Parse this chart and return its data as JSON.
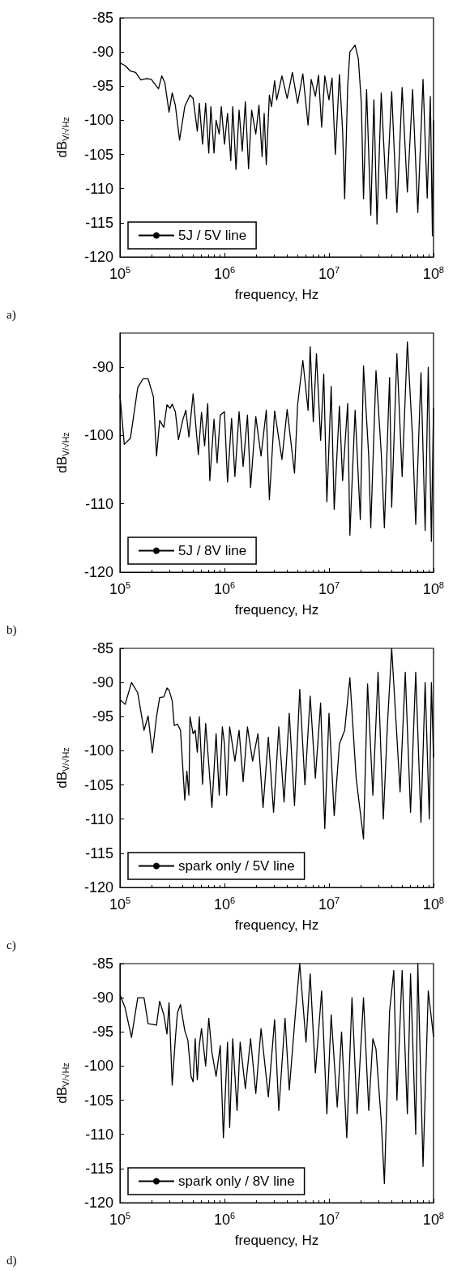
{
  "chart_data": [
    {
      "type": "line",
      "xlabel": "frequency, Hz",
      "ylabel": "dB$_{V/√Hz}$",
      "annotations": [
        "a)"
      ],
      "log": "x",
      "legend": "bottom left",
      "xlim": [
        100000.0,
        100000000.0
      ],
      "xticks": [
        {
          "value": 100000.0,
          "label": "10$^{5}$"
        },
        {
          "value": 1000000.0,
          "label": "10$^{6}$"
        },
        {
          "value": 10000000.0,
          "label": "10$^{7}$"
        },
        {
          "value": 100000000.0,
          "label": "10$^{8}$"
        }
      ],
      "ylim": [
        -120,
        -85
      ],
      "yticks": [
        -120,
        -115,
        -110,
        -105,
        -100,
        -95,
        -90,
        -85
      ],
      "series": [
        {
          "name": "5J / 5V line",
          "color": "#000000",
          "x": [
            100000.0,
            112200.0,
            125900.0,
            141300.0,
            158500.0,
            177800.0,
            199500.0,
            234000.0,
            251200.0,
            269000.0,
            295000.0,
            316200.0,
            339000.0,
            372000.0,
            417000.0,
            468000.0,
            501200.0,
            550000.0,
            575000.0,
            617000.0,
            661000.0,
            707900.0,
            741000.0,
            794300.0,
            832000.0,
            891300.0,
            933000.0,
            1000000.0,
            1070000.0,
            1150000.0,
            1200000.0,
            1290000.0,
            1380000.0,
            1480000.0,
            1585000.0,
            1700000.0,
            1820000.0,
            1995000.0,
            2140000.0,
            2290000.0,
            2400000.0,
            2512000.0,
            2690000.0,
            2818000.0,
            3020000.0,
            3162000.0,
            3548000.0,
            3981000.0,
            4467000.0,
            5012000.0,
            5623000.0,
            6310000.0,
            6760000.0,
            7410000.0,
            7943000.0,
            8510000.0,
            9120000.0,
            10000000.0,
            10700000.0,
            11500000.0,
            12590000.0,
            13500000.0,
            14130000.0,
            15100000.0,
            15850000.0,
            17780000.0,
            19100000.0,
            20400000.0,
            21400000.0,
            22900000.0,
            25120000.0,
            26900000.0,
            28800000.0,
            31620000.0,
            35480000.0,
            39810000.0,
            44670000.0,
            50120000.0,
            56230000.0,
            63100000.0,
            70790000.0,
            79430000.0,
            87100000.0,
            93300000.0,
            97700000.0,
            100000000.0
          ],
          "values": [
            -91.6,
            -92,
            -92.8,
            -93,
            -94.1,
            -93.9,
            -94,
            -95.4,
            -93.5,
            -94.5,
            -98.8,
            -96,
            -97.8,
            -102.9,
            -98,
            -96.3,
            -96.8,
            -101.6,
            -97.5,
            -103.5,
            -97.5,
            -104.8,
            -98,
            -104.8,
            -100,
            -102,
            -98,
            -103.5,
            -99,
            -105.9,
            -98,
            -107.2,
            -98.5,
            -104.5,
            -97.3,
            -107.1,
            -98.5,
            -102,
            -97.8,
            -105.3,
            -99,
            -106.5,
            -96.3,
            -98,
            -94.2,
            -97,
            -93.5,
            -96.8,
            -93,
            -97.5,
            -93.2,
            -100.7,
            -94,
            -96.5,
            -93.4,
            -101,
            -93.5,
            -97,
            -93.8,
            -105,
            -93.3,
            -101.5,
            -111.5,
            -95,
            -90,
            -89,
            -91,
            -97.5,
            -111.5,
            -95.5,
            -113.9,
            -97,
            -115.2,
            -96,
            -111.5,
            -95.8,
            -113.5,
            -95.2,
            -110.5,
            -95.5,
            -113.5,
            -94,
            -111.4,
            -96.5,
            -116.9,
            -100
          ]
        }
      ]
    },
    {
      "type": "line",
      "xlabel": "frequency, Hz",
      "ylabel": "dB$_{V/√Hz}$",
      "annotations": [
        "b)"
      ],
      "log": "x",
      "legend": "bottom left",
      "xlim": [
        100000.0,
        100000000.0
      ],
      "xticks": [
        {
          "value": 100000.0,
          "label": "10$^{5}$"
        },
        {
          "value": 1000000.0,
          "label": "10$^{6}$"
        },
        {
          "value": 10000000.0,
          "label": "10$^{7}$"
        },
        {
          "value": 100000000.0,
          "label": "10$^{8}$"
        }
      ],
      "ylim": [
        -120,
        -85
      ],
      "yticks": [
        -120,
        -110,
        -100,
        -90
      ],
      "series": [
        {
          "name": "5J / 8V line",
          "color": "#000000",
          "x": [
            100000.0,
            110000.0,
            125900.0,
            148000.0,
            166000.0,
            186000.0,
            209000.0,
            223900.0,
            240000.0,
            263000.0,
            281800.0,
            302000.0,
            316200.0,
            339000.0,
            363000.0,
            398100.0,
            427000.0,
            457000.0,
            501200.0,
            562300.0,
            603000.0,
            646000.0,
            692000.0,
            724000.0,
            794300.0,
            851000.0,
            912000.0,
            1000000.0,
            1070000.0,
            1170000.0,
            1259000.0,
            1380000.0,
            1510000.0,
            1660000.0,
            1778000.0,
            1995000.0,
            2239000.0,
            2512000.0,
            2690000.0,
            3020000.0,
            3548000.0,
            3981000.0,
            4680000.0,
            5012000.0,
            5623000.0,
            6310000.0,
            6610000.0,
            7079000.0,
            7590000.0,
            8320000.0,
            8913000.0,
            9550000.0,
            10500000.0,
            11220000.0,
            12590000.0,
            13500000.0,
            15100000.0,
            15850000.0,
            17780000.0,
            19950000.0,
            21400000.0,
            24000000.0,
            25120000.0,
            28180000.0,
            31620000.0,
            33900000.0,
            38000000.0,
            39810000.0,
            44670000.0,
            50120000.0,
            56230000.0,
            63100000.0,
            67600000.0,
            75900000.0,
            83200000.0,
            89130000.0,
            95500000.0,
            100000000.0
          ],
          "values": [
            -94,
            -101.3,
            -100.4,
            -93,
            -91.7,
            -91.7,
            -94.3,
            -103,
            -97.8,
            -98.8,
            -95.5,
            -96,
            -95.4,
            -96.5,
            -100.6,
            -97.8,
            -96.3,
            -100.2,
            -93.9,
            -102.8,
            -96.6,
            -101.5,
            -95.3,
            -106.6,
            -97.6,
            -104,
            -97,
            -96.5,
            -106.8,
            -97.5,
            -106,
            -96.5,
            -104.5,
            -97,
            -107.6,
            -97.2,
            -103,
            -96.3,
            -109.4,
            -96.4,
            -103.5,
            -96.2,
            -105.5,
            -95.5,
            -89,
            -96.3,
            -87,
            -98,
            -88,
            -100.7,
            -91,
            -109.7,
            -92.8,
            -110.8,
            -95.7,
            -106.6,
            -95.3,
            -114.6,
            -96.3,
            -112.3,
            -89.8,
            -103,
            -113.5,
            -90.5,
            -102.5,
            -113.5,
            -91.5,
            -110.5,
            -88,
            -106,
            -86.3,
            -100.5,
            -113,
            -90.8,
            -113.9,
            -90,
            -115.5,
            -96
          ]
        }
      ]
    },
    {
      "type": "line",
      "xlabel": "frequency, Hz",
      "ylabel": "dB$_{V/√Hz}$",
      "annotations": [
        "c)"
      ],
      "log": "x",
      "legend": "bottom left",
      "xlim": [
        100000.0,
        100000000.0
      ],
      "xticks": [
        {
          "value": 100000.0,
          "label": "10$^{5}$"
        },
        {
          "value": 1000000.0,
          "label": "10$^{6}$"
        },
        {
          "value": 10000000.0,
          "label": "10$^{7}$"
        },
        {
          "value": 100000000.0,
          "label": "10$^{8}$"
        }
      ],
      "ylim": [
        -120,
        -85
      ],
      "yticks": [
        -120,
        -115,
        -110,
        -105,
        -100,
        -95,
        -90,
        -85
      ],
      "series": [
        {
          "name": "spark only / 5V line",
          "color": "#000000",
          "x": [
            100000.0,
            112200.0,
            129000.0,
            148000.0,
            170000.0,
            186000.0,
            204000.0,
            223900.0,
            240000.0,
            263000.0,
            281800.0,
            295000.0,
            316200.0,
            331000.0,
            354800.0,
            380000.0,
            417000.0,
            437000.0,
            457000.0,
            468000.0,
            501200.0,
            525000.0,
            550000.0,
            575000.0,
            617000.0,
            661000.0,
            707900.0,
            759000.0,
            832000.0,
            891300.0,
            955000.0,
            1000000.0,
            1050000.0,
            1122000.0,
            1259000.0,
            1380000.0,
            1510000.0,
            1660000.0,
            1860000.0,
            2090000.0,
            2340000.0,
            2630000.0,
            2950000.0,
            3310000.0,
            3720000.0,
            4170000.0,
            4680000.0,
            5250000.0,
            5890000.0,
            6610000.0,
            7410000.0,
            8320000.0,
            9120000.0,
            10000000.0,
            11220000.0,
            12590000.0,
            14130000.0,
            15850000.0,
            18200000.0,
            21400000.0,
            23400000.0,
            26300000.0,
            29500000.0,
            33100000.0,
            36300000.0,
            39810000.0,
            43700000.0,
            47900000.0,
            53700000.0,
            60300000.0,
            67600000.0,
            75900000.0,
            83200000.0,
            91200000.0,
            95500000.0,
            100000000.0
          ],
          "values": [
            -92.5,
            -93.2,
            -90,
            -91.5,
            -97,
            -94.9,
            -100.3,
            -95,
            -92.2,
            -92.1,
            -90.8,
            -91.1,
            -92.7,
            -96.3,
            -96.1,
            -97,
            -107.2,
            -103,
            -106.5,
            -95,
            -97.5,
            -97,
            -100.2,
            -95,
            -104.9,
            -96,
            -102,
            -108.3,
            -97.5,
            -106.5,
            -96.5,
            -99,
            -106.5,
            -96.5,
            -101.5,
            -97,
            -104.5,
            -96.5,
            -101.5,
            -97.5,
            -108.3,
            -98,
            -109,
            -96.5,
            -107.5,
            -94.5,
            -108,
            -91,
            -105,
            -92,
            -104,
            -93,
            -111.4,
            -94.5,
            -109.5,
            -99,
            -97,
            -89.3,
            -104,
            -112.9,
            -90.2,
            -106.5,
            -88.5,
            -110,
            -96,
            -85,
            -95.5,
            -106,
            -88.5,
            -109,
            -88.5,
            -110.5,
            -90,
            -110,
            -90,
            -101
          ]
        }
      ]
    },
    {
      "type": "line",
      "xlabel": "frequency, Hz",
      "ylabel": "dB$_{V/√Hz}$",
      "annotations": [
        "d)"
      ],
      "log": "x",
      "legend": "bottom left",
      "xlim": [
        100000.0,
        100000000.0
      ],
      "xticks": [
        {
          "value": 100000.0,
          "label": "10$^{5}$"
        },
        {
          "value": 1000000.0,
          "label": "10$^{6}$"
        },
        {
          "value": 10000000.0,
          "label": "10$^{7}$"
        },
        {
          "value": 100000000.0,
          "label": "10$^{8}$"
        }
      ],
      "ylim": [
        -120,
        -85
      ],
      "yticks": [
        -120,
        -115,
        -110,
        -105,
        -100,
        -95,
        -90,
        -85
      ],
      "series": [
        {
          "name": "spark only / 8V line",
          "color": "#000000",
          "x": [
            100000.0,
            112200.0,
            129000.0,
            148000.0,
            170000.0,
            186000.0,
            223900.0,
            240000.0,
            263000.0,
            281800.0,
            295000.0,
            316200.0,
            339000.0,
            354800.0,
            380000.0,
            417000.0,
            446700.0,
            479000.0,
            501200.0,
            525000.0,
            550000.0,
            575000.0,
            603000.0,
            661000.0,
            707900.0,
            759000.0,
            832000.0,
            912000.0,
            977000.0,
            1070000.0,
            1122000.0,
            1200000.0,
            1320000.0,
            1413000.0,
            1585000.0,
            1778000.0,
            1995000.0,
            2239000.0,
            2630000.0,
            3020000.0,
            3310000.0,
            3800000.0,
            4170000.0,
            4790000.0,
            5250000.0,
            6030000.0,
            6610000.0,
            7410000.0,
            8510000.0,
            9550000.0,
            10500000.0,
            12000000.0,
            13200000.0,
            14800000.0,
            16600000.0,
            18600000.0,
            21400000.0,
            24000000.0,
            26300000.0,
            28180000.0,
            31620000.0,
            33900000.0,
            38000000.0,
            41700000.0,
            44670000.0,
            50120000.0,
            56230000.0,
            60300000.0,
            67600000.0,
            70790000.0,
            79430000.0,
            89130000.0,
            100000000.0
          ],
          "values": [
            -89.5,
            -91.5,
            -95.8,
            -90,
            -90,
            -93.8,
            -94,
            -90.5,
            -92.5,
            -95.3,
            -90.7,
            -102.8,
            -96,
            -92.2,
            -91,
            -94.8,
            -96.2,
            -101.5,
            -102.3,
            -96,
            -102,
            -97,
            -94.5,
            -100,
            -93,
            -98,
            -101.5,
            -97,
            -110.5,
            -96.5,
            -109,
            -96,
            -106.5,
            -96.5,
            -103.3,
            -96,
            -104,
            -94.5,
            -104.5,
            -93.2,
            -106.5,
            -93,
            -103.5,
            -92,
            -85,
            -96.5,
            -86.5,
            -101,
            -89,
            -107,
            -92.5,
            -106,
            -95,
            -110.5,
            -90,
            -107,
            -90,
            -106.5,
            -96,
            -97.5,
            -108,
            -117.2,
            -92,
            -86,
            -105,
            -86,
            -107,
            -86.5,
            -110,
            -85,
            -114.7,
            -89,
            -95.7
          ]
        }
      ]
    }
  ]
}
